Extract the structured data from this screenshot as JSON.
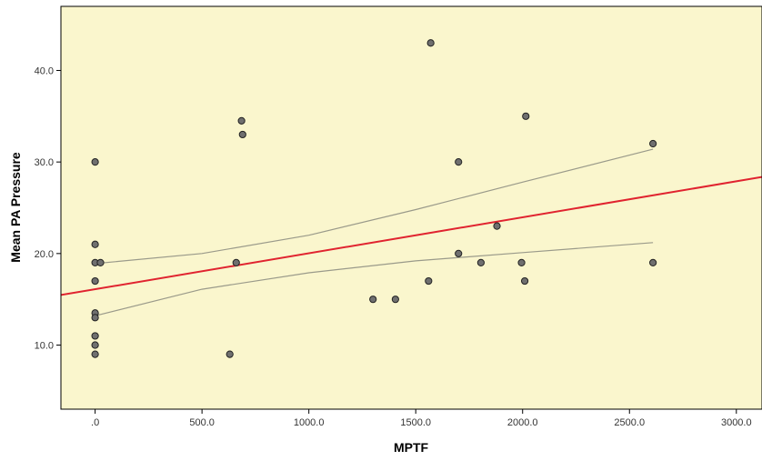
{
  "chart_data": {
    "type": "scatter",
    "title": "",
    "xlabel": "MPTF",
    "ylabel": "Mean PA Pressure",
    "xlim": [
      -160,
      3120
    ],
    "ylim": [
      3,
      47
    ],
    "xticks": [
      0,
      500,
      1000,
      1500,
      2000,
      2500,
      3000
    ],
    "xtick_labels": [
      ".0",
      "500.0",
      "1000.0",
      "1500.0",
      "2000.0",
      "2500.0",
      "3000.0"
    ],
    "yticks": [
      10,
      20,
      30,
      40
    ],
    "ytick_labels": [
      "10.0",
      "20.0",
      "30.0",
      "40.0"
    ],
    "grid": false,
    "legend": "none",
    "points": [
      {
        "x": 0,
        "y": 30
      },
      {
        "x": 0,
        "y": 21
      },
      {
        "x": 0,
        "y": 19
      },
      {
        "x": 25,
        "y": 19
      },
      {
        "x": 0,
        "y": 17
      },
      {
        "x": 0,
        "y": 13.5
      },
      {
        "x": 0,
        "y": 13
      },
      {
        "x": 0,
        "y": 11
      },
      {
        "x": 0,
        "y": 10
      },
      {
        "x": 0,
        "y": 9
      },
      {
        "x": 630,
        "y": 9
      },
      {
        "x": 660,
        "y": 19
      },
      {
        "x": 685,
        "y": 34.5
      },
      {
        "x": 690,
        "y": 33
      },
      {
        "x": 1300,
        "y": 15
      },
      {
        "x": 1405,
        "y": 15
      },
      {
        "x": 1560,
        "y": 17
      },
      {
        "x": 1570,
        "y": 43
      },
      {
        "x": 1700,
        "y": 30
      },
      {
        "x": 1700,
        "y": 20
      },
      {
        "x": 1805,
        "y": 19
      },
      {
        "x": 1880,
        "y": 23
      },
      {
        "x": 1995,
        "y": 19
      },
      {
        "x": 2010,
        "y": 17
      },
      {
        "x": 2015,
        "y": 35
      },
      {
        "x": 2610,
        "y": 32
      },
      {
        "x": 2610,
        "y": 19
      }
    ],
    "fit_line": {
      "intercept": 16.1,
      "slope": 0.00393
    },
    "confidence_band": {
      "x": [
        0,
        500,
        1000,
        1500,
        2000,
        2610
      ],
      "upper": [
        18.9,
        20.0,
        22.0,
        24.8,
        27.8,
        31.4
      ],
      "lower": [
        13.2,
        16.1,
        17.9,
        19.2,
        20.1,
        21.2
      ]
    },
    "colors": {
      "plot_background": "#faf6cd",
      "fit_line": "#e0232f",
      "band_line": "#9a9a8a",
      "point_fill": "#6f6f6f",
      "point_stroke": "#222222"
    }
  }
}
